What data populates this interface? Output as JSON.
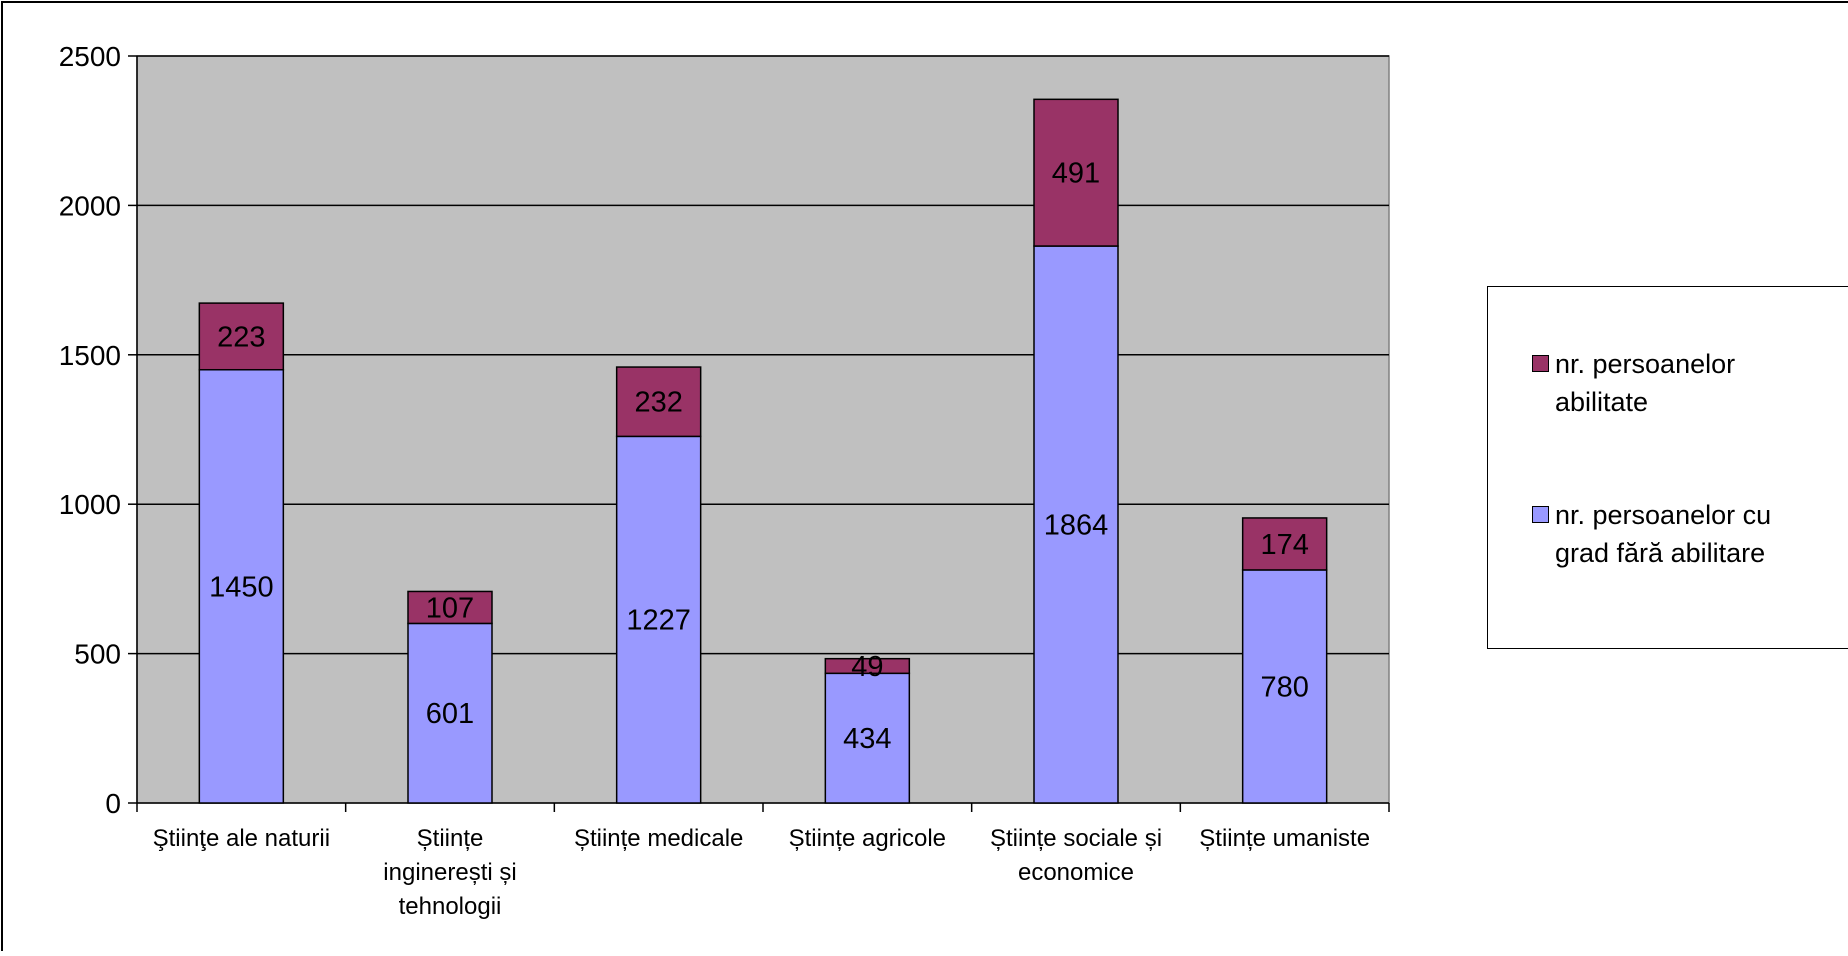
{
  "chart_data": {
    "type": "bar",
    "stacked": true,
    "categories": [
      "Ştiinţe ale naturii",
      "Științe inginerești și tehnologii",
      "Științe medicale",
      "Științe agricole",
      "Științe sociale și economice",
      "Științe umaniste"
    ],
    "category_lines": [
      [
        "Ştiinţe ale naturii"
      ],
      [
        "Științe",
        "inginerești și",
        "tehnologii"
      ],
      [
        "Științe medicale"
      ],
      [
        "Științe agricole"
      ],
      [
        "Științe sociale și",
        "economice"
      ],
      [
        "Științe umaniste"
      ]
    ],
    "series": [
      {
        "name": "nr. persoanelor cu grad fără abilitare",
        "color": "#9999ff",
        "values": [
          1450,
          601,
          1227,
          434,
          1864,
          780
        ]
      },
      {
        "name": "nr. persoanelor abilitate",
        "color": "#993366",
        "values": [
          223,
          107,
          232,
          49,
          491,
          174
        ]
      }
    ],
    "ylim": [
      0,
      2500
    ],
    "yticks": [
      0,
      500,
      1000,
      1500,
      2000,
      2500
    ],
    "grid": true,
    "plot_background": "#c0c0c0",
    "legend_position": "right",
    "legend": [
      {
        "label_lines": [
          "nr. persoanelor",
          "abilitate"
        ],
        "color": "#993366"
      },
      {
        "label_lines": [
          "nr. persoanelor cu",
          "grad fără abilitare"
        ],
        "color": "#9999ff"
      }
    ]
  }
}
